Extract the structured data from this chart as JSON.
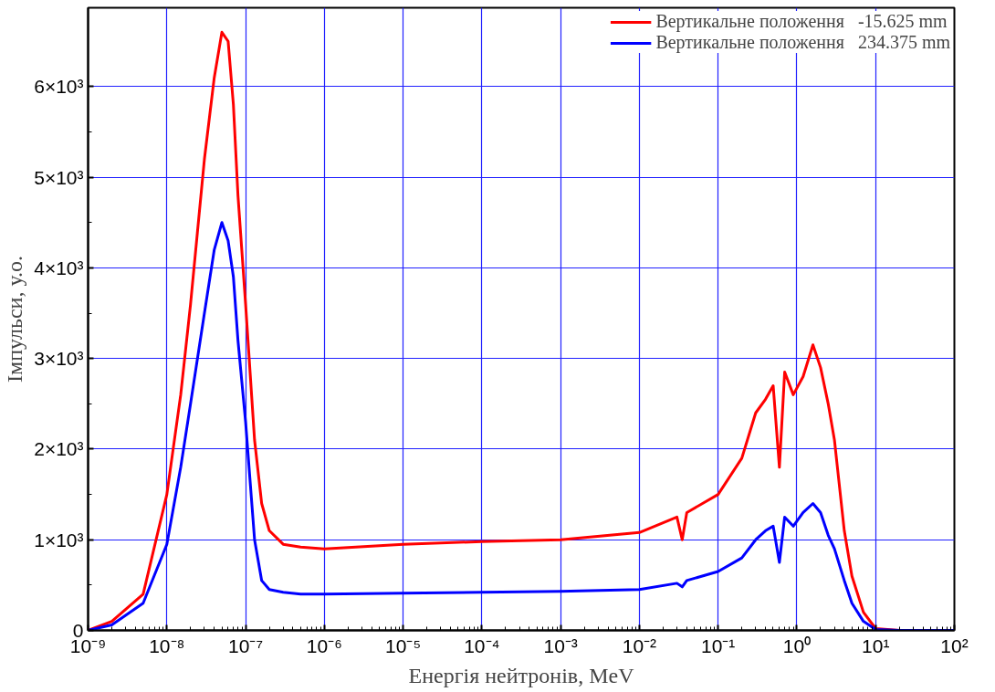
{
  "chart_data": {
    "type": "line",
    "xlabel": "Енергія нейтронів, MeV",
    "ylabel": "Імпульси, у.о.",
    "log": "x",
    "grid": true,
    "legend": "top right",
    "line_style": "solid",
    "xlim": [
      1e-09,
      100
    ],
    "ylim": [
      0,
      6870
    ],
    "xticks": [
      {
        "value": 1e-09,
        "label": "10⁻⁹"
      },
      {
        "value": 1e-08,
        "label": "10⁻⁸"
      },
      {
        "value": 1e-07,
        "label": "10⁻⁷"
      },
      {
        "value": 1e-06,
        "label": "10⁻⁶"
      },
      {
        "value": 1e-05,
        "label": "10⁻⁵"
      },
      {
        "value": 0.0001,
        "label": "10⁻⁴"
      },
      {
        "value": 0.001,
        "label": "10⁻³"
      },
      {
        "value": 0.01,
        "label": "10⁻²"
      },
      {
        "value": 0.1,
        "label": "10⁻¹"
      },
      {
        "value": 1,
        "label": "10⁰"
      },
      {
        "value": 10,
        "label": "10¹"
      },
      {
        "value": 100,
        "label": "10²"
      }
    ],
    "yticks": [
      0,
      {
        "value": 1000,
        "label": "1×10³"
      },
      {
        "value": 2000,
        "label": "2×10³"
      },
      {
        "value": 3000,
        "label": "3×10³"
      },
      {
        "value": 4000,
        "label": "4×10³"
      },
      {
        "value": 5000,
        "label": "5×10³"
      },
      {
        "value": 6000,
        "label": "6×10³"
      }
    ],
    "x": [
      1e-09,
      2e-09,
      5e-09,
      1e-08,
      1.5e-08,
      2e-08,
      3e-08,
      4e-08,
      5e-08,
      6e-08,
      7e-08,
      8e-08,
      1e-07,
      1.3e-07,
      1.6e-07,
      2e-07,
      3e-07,
      5e-07,
      1e-06,
      1e-05,
      0.0001,
      0.001,
      0.01,
      0.03,
      0.035,
      0.04,
      0.1,
      0.2,
      0.3,
      0.4,
      0.5,
      0.6,
      0.7,
      0.9,
      1.2,
      1.6,
      2,
      2.5,
      3,
      4,
      5,
      7,
      10,
      20,
      100
    ],
    "series": [
      {
        "name": "Вертикальне положення   -15.625 mm",
        "color": "#ff0000",
        "values": [
          0,
          100,
          400,
          1500,
          2600,
          3600,
          5200,
          6100,
          6600,
          6500,
          5800,
          4800,
          3600,
          2100,
          1400,
          1100,
          950,
          920,
          900,
          950,
          980,
          1000,
          1080,
          1250,
          1000,
          1300,
          1500,
          1900,
          2400,
          2550,
          2700,
          1800,
          2850,
          2600,
          2800,
          3150,
          2900,
          2500,
          2100,
          1100,
          600,
          200,
          20,
          0,
          0
        ]
      },
      {
        "name": "Вертикальне положення   234.375 mm",
        "color": "#0000ff",
        "values": [
          0,
          60,
          300,
          950,
          1800,
          2500,
          3500,
          4200,
          4500,
          4300,
          3900,
          3200,
          2300,
          1000,
          550,
          450,
          420,
          400,
          400,
          410,
          420,
          430,
          450,
          520,
          480,
          550,
          650,
          800,
          1000,
          1100,
          1150,
          750,
          1250,
          1150,
          1300,
          1400,
          1300,
          1050,
          900,
          550,
          300,
          100,
          10,
          0,
          0
        ]
      }
    ]
  }
}
